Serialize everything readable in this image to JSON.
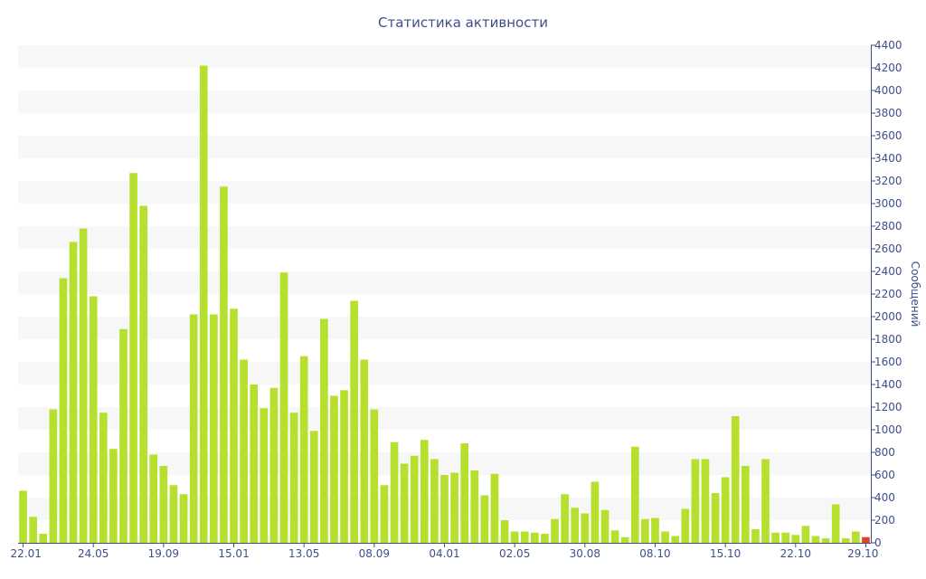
{
  "chart_data": {
    "type": "bar",
    "title": "Статистика активности",
    "ylabel": "Сообщений",
    "xlabel": "",
    "ylim": [
      0,
      4400
    ],
    "ytick_step": 200,
    "y_axis_side": "right",
    "grid": "horizontal alternating bands",
    "x_tick_labels": [
      {
        "index": 0,
        "label": "22.01"
      },
      {
        "index": 7,
        "label": "24.05"
      },
      {
        "index": 14,
        "label": "19.09"
      },
      {
        "index": 21,
        "label": "15.01"
      },
      {
        "index": 28,
        "label": "13.05"
      },
      {
        "index": 35,
        "label": "08.09"
      },
      {
        "index": 42,
        "label": "04.01"
      },
      {
        "index": 49,
        "label": "02.05"
      },
      {
        "index": 56,
        "label": "30.08"
      },
      {
        "index": 63,
        "label": "08.10"
      },
      {
        "index": 70,
        "label": "15.10"
      },
      {
        "index": 77,
        "label": "22.10"
      },
      {
        "index": 84,
        "label": "29.10"
      }
    ],
    "values": [
      460,
      230,
      80,
      1180,
      2340,
      2660,
      2780,
      2180,
      1150,
      830,
      1890,
      3270,
      2980,
      780,
      680,
      510,
      430,
      2020,
      4220,
      2020,
      3150,
      2070,
      1620,
      1400,
      1190,
      1370,
      2390,
      1150,
      1650,
      990,
      1980,
      1300,
      1350,
      2140,
      1620,
      1180,
      510,
      890,
      700,
      770,
      910,
      740,
      600,
      620,
      880,
      640,
      420,
      610,
      200,
      100,
      100,
      90,
      80,
      210,
      430,
      310,
      260,
      540,
      290,
      110,
      50,
      850,
      210,
      220,
      100,
      60,
      300,
      740,
      740,
      440,
      580,
      1120,
      680,
      120,
      740,
      90,
      90,
      70,
      150,
      60,
      40,
      340,
      40,
      100,
      50
    ],
    "bar_color": "#b5e02d",
    "highlight_index": 84,
    "highlight_color": "#e0452b",
    "text_color": "#3f4e8a",
    "band_color": "#f7f7f7",
    "axis_color": "#3f4e8a"
  }
}
